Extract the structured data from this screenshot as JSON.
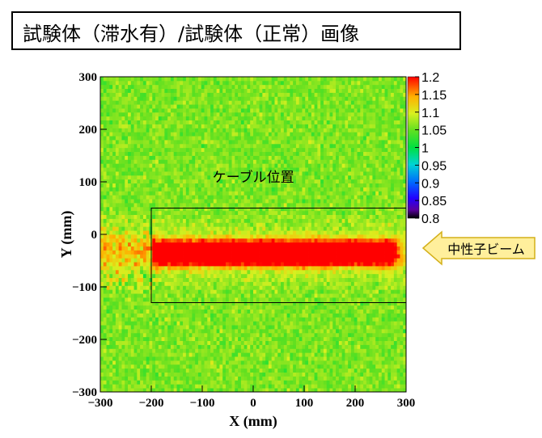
{
  "title": "試験体（滞水有）/試験体（正常）画像",
  "annotation_cable": "ケーブル位置",
  "annotation_beam": "中性子ビーム",
  "colors": {
    "beam_arrow_fill": "#ffef9c",
    "beam_arrow_stroke": "#d4b01a",
    "frame": "#000000"
  },
  "chart_data": {
    "type": "heatmap",
    "title": "",
    "xlabel": "X (mm)",
    "ylabel": "Y (mm)",
    "xlim": [
      -300,
      300
    ],
    "ylim": [
      -300,
      300
    ],
    "x_ticks": [
      -300,
      -200,
      -100,
      0,
      100,
      200,
      300
    ],
    "x_tick_labels": [
      "−300",
      "−200",
      "−100",
      "0",
      "100",
      "200",
      "300"
    ],
    "y_ticks": [
      300,
      200,
      100,
      0,
      -100,
      -200,
      -300
    ],
    "y_tick_labels": [
      "300",
      "200",
      "100",
      "0",
      "−100",
      "−200",
      "−300"
    ],
    "colorbar": {
      "min": 0.8,
      "max": 1.2,
      "ticks": [
        1.2,
        1.15,
        1.1,
        1.05,
        1,
        0.95,
        0.9,
        0.85,
        0.8
      ],
      "tick_labels": [
        "1.2",
        "1.15",
        "1.1",
        "1.05",
        "1",
        "0.95",
        "0.9",
        "0.85",
        "0.8"
      ]
    },
    "regions": [
      {
        "x_range": [
          -300,
          300
        ],
        "y_range": [
          -300,
          300
        ],
        "approx_ratio": 1.05
      },
      {
        "x_range": [
          -200,
          280
        ],
        "y_range": [
          -70,
          0
        ],
        "approx_ratio": 1.2
      },
      {
        "x_range": [
          -300,
          300
        ],
        "y_range": [
          -130,
          50
        ],
        "approx_ratio": 1.12
      }
    ],
    "cable_box": {
      "x": [
        -200,
        300
      ],
      "y": [
        -130,
        50
      ]
    }
  }
}
